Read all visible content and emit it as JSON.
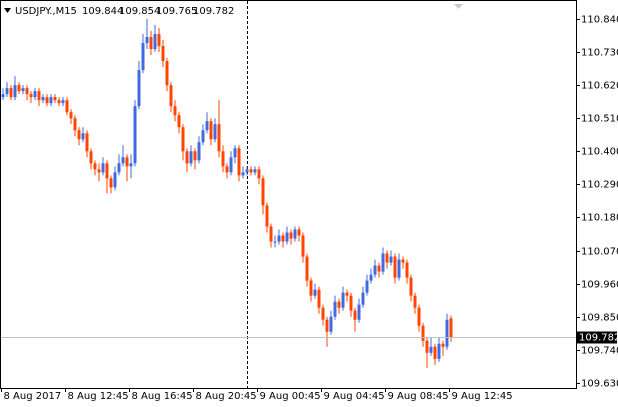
{
  "chart_data": {
    "type": "candlestick",
    "title": "USDJPY.,M15",
    "up_color": "#4169e1",
    "down_color": "#ff4500",
    "categories": [
      "8 Aug 2017",
      null,
      null,
      null,
      null,
      null,
      null,
      null,
      null,
      null,
      null,
      null,
      null,
      null,
      null,
      null,
      "8 Aug 12:45",
      null,
      null,
      null,
      null,
      null,
      null,
      null,
      null,
      null,
      null,
      null,
      null,
      null,
      null,
      null,
      "8 Aug 16:45",
      null,
      null,
      null,
      null,
      null,
      null,
      null,
      null,
      null,
      null,
      null,
      null,
      null,
      null,
      null,
      "8 Aug 20:45",
      null,
      null,
      null,
      null,
      null,
      null,
      null,
      null,
      null,
      null,
      null,
      null,
      null,
      null,
      null,
      "9 Aug 00:45",
      null,
      null,
      null,
      null,
      null,
      null,
      null,
      null,
      null,
      null,
      null,
      null,
      null,
      null,
      null,
      "9 Aug 04:45",
      null,
      null,
      null,
      null,
      null,
      null,
      null,
      null,
      null,
      null,
      null,
      null,
      null,
      null,
      null,
      "9 Aug 08:45",
      null,
      null,
      null,
      null,
      null,
      null,
      null,
      null,
      null,
      null,
      null,
      null,
      null,
      null,
      null,
      "9 Aug 12:45"
    ],
    "open": [
      110.58,
      110.59,
      110.61,
      110.58,
      110.62,
      110.6,
      110.61,
      110.59,
      110.58,
      110.6,
      110.57,
      110.58,
      110.56,
      110.58,
      110.57,
      110.56,
      110.57,
      110.53,
      110.51,
      110.47,
      110.44,
      110.46,
      110.4,
      110.36,
      110.34,
      110.33,
      110.36,
      110.31,
      110.28,
      110.33,
      110.36,
      110.38,
      110.35,
      110.36,
      110.55,
      110.67,
      110.76,
      110.78,
      110.74,
      110.79,
      110.75,
      110.7,
      110.62,
      110.55,
      110.52,
      110.48,
      110.4,
      110.36,
      110.4,
      110.37,
      110.43,
      110.47,
      110.5,
      110.44,
      110.49,
      110.4,
      110.35,
      110.33,
      110.38,
      110.41,
      110.32,
      110.33,
      110.34,
      110.33,
      110.34,
      110.31,
      110.22,
      110.15,
      110.1,
      110.1,
      110.12,
      110.1,
      110.13,
      110.11,
      110.14,
      110.12,
      110.05,
      109.97,
      109.92,
      109.94,
      109.88,
      109.84,
      109.8,
      109.85,
      109.9,
      109.88,
      109.93,
      109.92,
      109.87,
      109.84,
      109.89,
      109.93,
      109.97,
      109.99,
      110.02,
      110.0,
      110.06,
      110.03,
      110.05,
      109.98,
      110.04,
      110.03,
      109.98,
      109.92,
      109.88,
      109.82,
      109.77,
      109.73,
      109.75,
      109.71,
      109.76,
      109.75,
      109.844
    ],
    "high": [
      110.61,
      110.63,
      110.62,
      110.65,
      110.63,
      110.62,
      110.62,
      110.6,
      110.61,
      110.61,
      110.59,
      110.59,
      110.59,
      110.59,
      110.58,
      110.58,
      110.58,
      110.54,
      110.52,
      110.48,
      110.48,
      110.47,
      110.41,
      110.37,
      110.36,
      110.38,
      110.37,
      110.32,
      110.35,
      110.39,
      110.42,
      110.39,
      110.39,
      110.57,
      110.7,
      110.79,
      110.84,
      110.8,
      110.82,
      110.81,
      110.77,
      110.71,
      110.63,
      110.57,
      110.53,
      110.49,
      110.41,
      110.42,
      110.41,
      110.45,
      110.49,
      110.53,
      110.51,
      110.51,
      110.57,
      110.42,
      110.36,
      110.4,
      110.42,
      110.42,
      110.35,
      110.35,
      110.35,
      110.35,
      110.35,
      110.32,
      110.23,
      110.16,
      110.12,
      110.14,
      110.13,
      110.15,
      110.14,
      110.15,
      110.15,
      110.13,
      110.06,
      109.98,
      109.96,
      109.95,
      109.89,
      109.85,
      109.87,
      109.92,
      109.91,
      109.95,
      109.94,
      109.93,
      109.88,
      109.91,
      109.95,
      109.99,
      110.01,
      110.04,
      110.03,
      110.08,
      110.07,
      110.07,
      110.06,
      110.06,
      110.05,
      110.04,
      109.99,
      109.93,
      109.89,
      109.83,
      109.78,
      109.78,
      109.76,
      109.78,
      109.77,
      109.86,
      109.854
    ],
    "low": [
      110.57,
      110.58,
      110.57,
      110.57,
      110.59,
      110.59,
      110.57,
      110.56,
      110.57,
      110.55,
      110.56,
      110.55,
      110.55,
      110.56,
      110.55,
      110.55,
      110.52,
      110.49,
      110.45,
      110.42,
      110.43,
      110.38,
      110.34,
      110.32,
      110.3,
      110.32,
      110.26,
      110.26,
      110.27,
      110.32,
      110.35,
      110.3,
      110.31,
      110.35,
      110.54,
      110.66,
      110.74,
      110.72,
      110.73,
      110.73,
      110.68,
      110.6,
      110.53,
      110.5,
      110.46,
      110.37,
      110.33,
      110.35,
      110.34,
      110.36,
      110.42,
      110.46,
      110.42,
      110.43,
      110.38,
      110.33,
      110.31,
      110.32,
      110.36,
      110.3,
      110.31,
      110.32,
      110.32,
      110.32,
      110.29,
      110.19,
      110.13,
      110.08,
      110.08,
      110.09,
      110.08,
      110.09,
      110.09,
      110.1,
      110.1,
      110.03,
      109.95,
      109.9,
      109.91,
      109.86,
      109.82,
      109.75,
      109.79,
      109.84,
      109.86,
      109.87,
      109.9,
      109.85,
      109.8,
      109.83,
      109.88,
      109.92,
      109.96,
      109.98,
      109.98,
      109.99,
      110.01,
      110.02,
      109.96,
      109.97,
      110.01,
      109.96,
      109.9,
      109.86,
      109.8,
      109.75,
      109.68,
      109.72,
      109.69,
      109.7,
      109.72,
      109.74,
      109.765
    ],
    "close": [
      110.59,
      110.61,
      110.58,
      110.62,
      110.6,
      110.61,
      110.59,
      110.58,
      110.6,
      110.57,
      110.58,
      110.56,
      110.58,
      110.57,
      110.56,
      110.57,
      110.53,
      110.51,
      110.47,
      110.44,
      110.46,
      110.4,
      110.36,
      110.34,
      110.33,
      110.36,
      110.31,
      110.28,
      110.33,
      110.36,
      110.38,
      110.35,
      110.36,
      110.55,
      110.67,
      110.76,
      110.78,
      110.74,
      110.79,
      110.75,
      110.7,
      110.62,
      110.55,
      110.52,
      110.48,
      110.4,
      110.36,
      110.4,
      110.37,
      110.43,
      110.47,
      110.5,
      110.44,
      110.49,
      110.4,
      110.35,
      110.33,
      110.38,
      110.41,
      110.32,
      110.33,
      110.34,
      110.33,
      110.34,
      110.31,
      110.22,
      110.15,
      110.1,
      110.1,
      110.12,
      110.1,
      110.13,
      110.11,
      110.14,
      110.12,
      110.05,
      109.97,
      109.92,
      109.94,
      109.88,
      109.84,
      109.8,
      109.85,
      109.9,
      109.88,
      109.93,
      109.92,
      109.87,
      109.84,
      109.89,
      109.93,
      109.97,
      109.99,
      110.02,
      110.0,
      110.06,
      110.03,
      110.05,
      109.98,
      110.04,
      110.03,
      109.98,
      109.92,
      109.88,
      109.82,
      109.77,
      109.73,
      109.75,
      109.71,
      109.76,
      109.75,
      109.84,
      109.782
    ],
    "current_price": {
      "value": 109.782,
      "label": "109.782"
    },
    "ylim": [
      109.613,
      110.903
    ],
    "yticks": [
      {
        "value": 110.84,
        "label": "110.840"
      },
      {
        "value": 110.73,
        "label": "110.730"
      },
      {
        "value": 110.62,
        "label": "110.620"
      },
      {
        "value": 110.51,
        "label": "110.510"
      },
      {
        "value": 110.4,
        "label": "110.400"
      },
      {
        "value": 110.29,
        "label": "110.290"
      },
      {
        "value": 110.18,
        "label": "110.180"
      },
      {
        "value": 110.07,
        "label": "110.070"
      },
      {
        "value": 109.96,
        "label": "109.960"
      },
      {
        "value": 109.85,
        "label": "109.850"
      },
      {
        "value": 109.74,
        "label": "109.740"
      },
      {
        "value": 109.63,
        "label": "109.630"
      }
    ]
  }
}
